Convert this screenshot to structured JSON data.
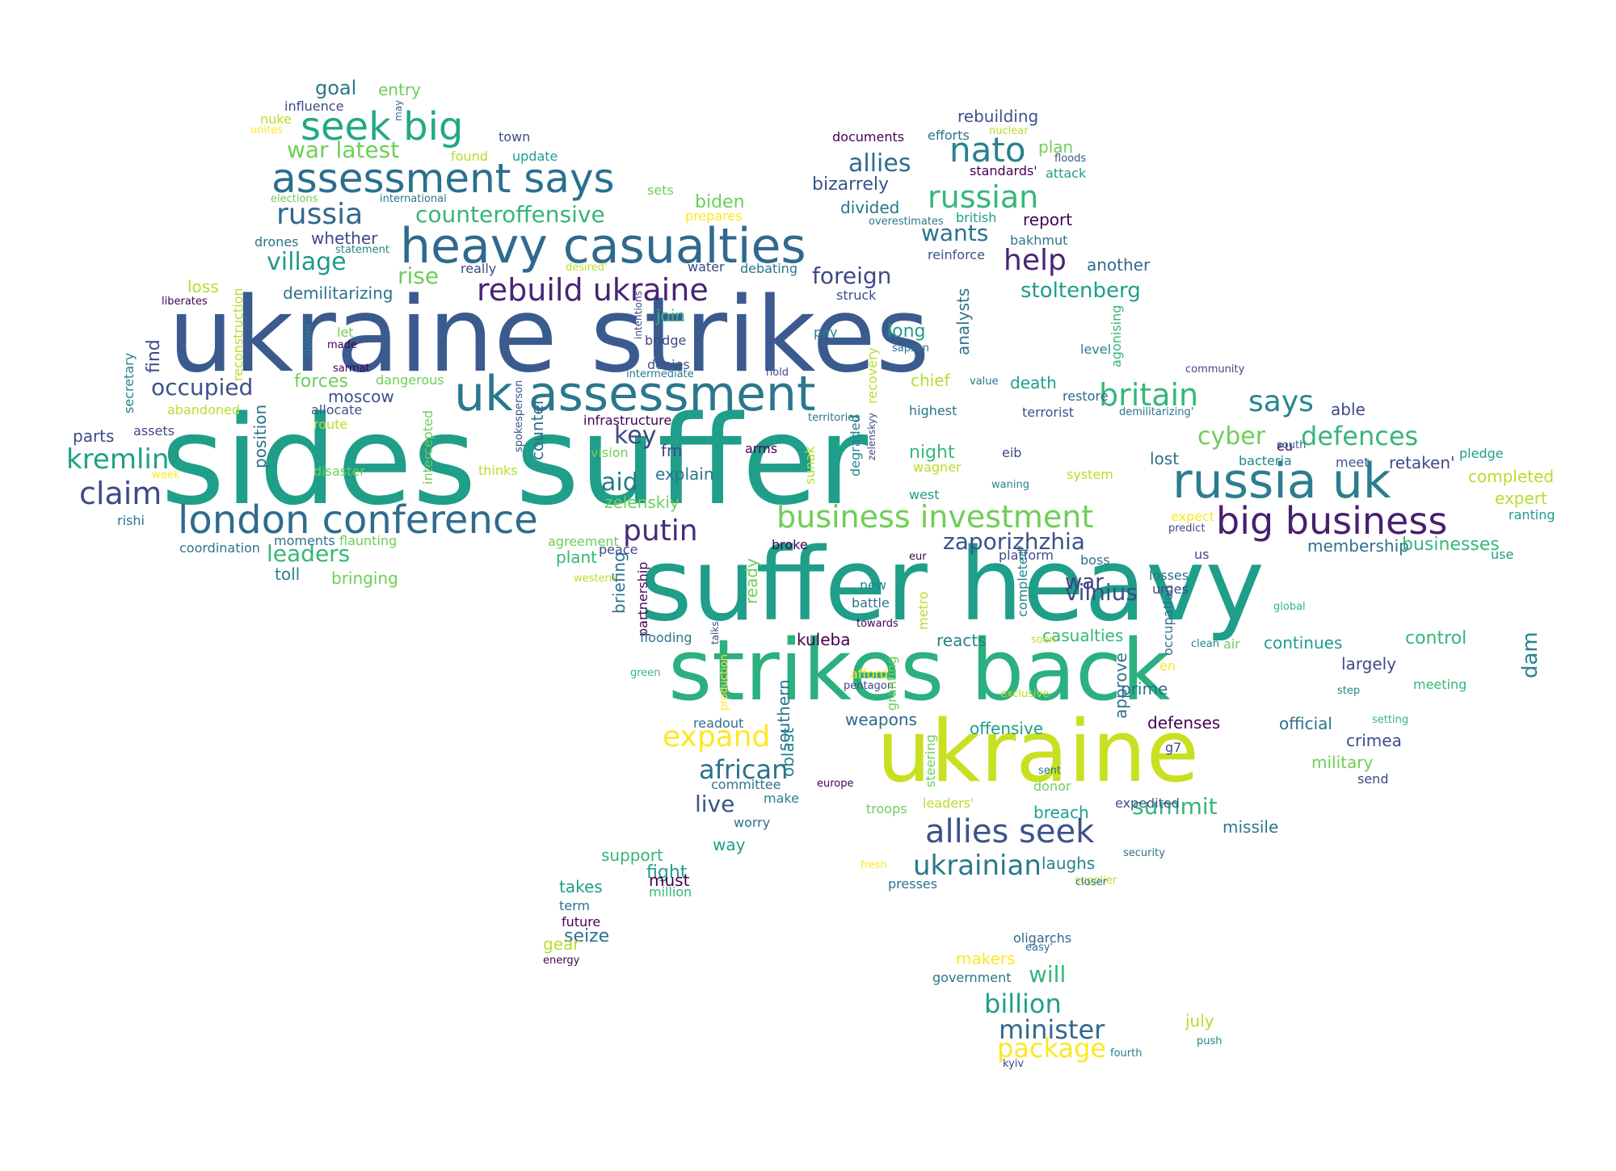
{
  "palette": [
    "#440154",
    "#482878",
    "#3e4989",
    "#31688e",
    "#26828e",
    "#1f9e89",
    "#35b779",
    "#6ece58",
    "#b5de2b",
    "#fde725"
  ],
  "words": [
    {
      "text": "sides suffer",
      "color": "#1f9e89"
    },
    {
      "text": "ukraine strikes",
      "color": "#3b5b8f"
    },
    {
      "text": "suffer heavy",
      "color": "#1f9e89"
    },
    {
      "text": "strikes back",
      "color": "#2bb07f"
    },
    {
      "text": "ukraine",
      "color": "#c8e020"
    },
    {
      "text": "heavy casualties",
      "color": "#2e6a8e"
    },
    {
      "text": "uk assessment",
      "color": "#2a778e"
    },
    {
      "text": "assessment says",
      "color": "#2a6f8e"
    },
    {
      "text": "russia uk",
      "color": "#2c7e8e"
    },
    {
      "text": "london conference",
      "color": "#2f6c8e"
    },
    {
      "text": "big business",
      "color": "#481f70"
    },
    {
      "text": "seek big",
      "color": "#22a884"
    },
    {
      "text": "business investment",
      "color": "#6ece58"
    },
    {
      "text": "allies seek",
      "color": "#3b528b"
    },
    {
      "text": "rebuild ukraine",
      "color": "#482475"
    },
    {
      "text": "nato",
      "color": "#26828e"
    },
    {
      "text": "russian",
      "color": "#35b779"
    },
    {
      "text": "britain",
      "color": "#35b779"
    },
    {
      "text": "says",
      "color": "#25858e"
    },
    {
      "text": "claim",
      "color": "#3e4989"
    },
    {
      "text": "kremlin",
      "color": "#1fa187"
    },
    {
      "text": "putin",
      "color": "#472c7a"
    },
    {
      "text": "russia",
      "color": "#31688e"
    },
    {
      "text": "war latest",
      "color": "#6ece58"
    },
    {
      "text": "village",
      "color": "#1f9a8a"
    },
    {
      "text": "counteroffensive",
      "color": "#35b779"
    },
    {
      "text": "expand",
      "color": "#fde725"
    },
    {
      "text": "african",
      "color": "#2c728e"
    },
    {
      "text": "ukrainian",
      "color": "#2a788e"
    },
    {
      "text": "occupied",
      "color": "#3b528b"
    },
    {
      "text": "help",
      "color": "#482475"
    },
    {
      "text": "allies",
      "color": "#2f6c8e"
    },
    {
      "text": "foreign",
      "color": "#3e4989"
    },
    {
      "text": "defences",
      "color": "#35b779"
    },
    {
      "text": "cyber",
      "color": "#6ece58"
    },
    {
      "text": "zaporizhzhia",
      "color": "#3b528b"
    },
    {
      "text": "stoltenberg",
      "color": "#1f9e89"
    },
    {
      "text": "wants",
      "color": "#2c728e"
    },
    {
      "text": "key",
      "color": "#3e4989"
    },
    {
      "text": "aid",
      "color": "#2a788e"
    },
    {
      "text": "leaders",
      "color": "#35b779"
    },
    {
      "text": "vilnius",
      "color": "#3e4989"
    },
    {
      "text": "war",
      "color": "#433e85"
    },
    {
      "text": "rise",
      "color": "#6ece58"
    },
    {
      "text": "billion",
      "color": "#1f9e89"
    },
    {
      "text": "minister",
      "color": "#31688e"
    },
    {
      "text": "package",
      "color": "#fde725"
    },
    {
      "text": "will",
      "color": "#35b779"
    },
    {
      "text": "summit",
      "color": "#35b779"
    },
    {
      "text": "live",
      "color": "#3b528b"
    },
    {
      "text": "goal",
      "color": "#2a788e"
    },
    {
      "text": "entry",
      "color": "#6ece58"
    },
    {
      "text": "influence",
      "color": "#3e4989"
    },
    {
      "text": "nuke",
      "color": "#b5de2b"
    },
    {
      "text": "unites",
      "color": "#fde725"
    },
    {
      "text": "may",
      "color": "#31688e"
    },
    {
      "text": "town",
      "color": "#3e4989"
    },
    {
      "text": "found",
      "color": "#b5de2b"
    },
    {
      "text": "update",
      "color": "#1f9e89"
    },
    {
      "text": "elections",
      "color": "#6ece58"
    },
    {
      "text": "international",
      "color": "#2a788e"
    },
    {
      "text": "sets",
      "color": "#6ece58"
    },
    {
      "text": "biden",
      "color": "#6ece58"
    },
    {
      "text": "prepares",
      "color": "#fde725"
    },
    {
      "text": "drones",
      "color": "#2c728e"
    },
    {
      "text": "statement",
      "color": "#26828e"
    },
    {
      "text": "whether",
      "color": "#3e4989"
    },
    {
      "text": "demilitarizing",
      "color": "#2c728e"
    },
    {
      "text": "loss",
      "color": "#b5de2b"
    },
    {
      "text": "liberates",
      "color": "#440154"
    },
    {
      "text": "really",
      "color": "#3e4989"
    },
    {
      "text": "desired'",
      "color": "#b5de2b"
    },
    {
      "text": "water",
      "color": "#3e4989"
    },
    {
      "text": "debating",
      "color": "#2a788e"
    },
    {
      "text": "struck",
      "color": "#3e4989"
    },
    {
      "text": "documents",
      "color": "#440154"
    },
    {
      "text": "efforts",
      "color": "#2c728e"
    },
    {
      "text": "nuclear",
      "color": "#b5de2b"
    },
    {
      "text": "rebuilding",
      "color": "#3b528b"
    },
    {
      "text": "plan",
      "color": "#6ece58"
    },
    {
      "text": "floods",
      "color": "#3b528b"
    },
    {
      "text": "attack",
      "color": "#1f9e89"
    },
    {
      "text": "standards'",
      "color": "#440154"
    },
    {
      "text": "bizarrely",
      "color": "#3b528b"
    },
    {
      "text": "divided",
      "color": "#2c728e"
    },
    {
      "text": "overestimates",
      "color": "#2a788e"
    },
    {
      "text": "british",
      "color": "#1f9e89"
    },
    {
      "text": "report",
      "color": "#440154"
    },
    {
      "text": "reinforce",
      "color": "#3b528b"
    },
    {
      "text": "bakhmut",
      "color": "#2a788e"
    },
    {
      "text": "another",
      "color": "#31688e"
    },
    {
      "text": "analysts",
      "color": "#2c728e"
    },
    {
      "text": "long",
      "color": "#1f9e89"
    },
    {
      "text": "sapsan",
      "color": "#2c728e"
    },
    {
      "text": "agonising",
      "color": "#35b779"
    },
    {
      "text": "level",
      "color": "#26828e"
    },
    {
      "text": "community",
      "color": "#3e4989"
    },
    {
      "text": "find",
      "color": "#3e4989"
    },
    {
      "text": "secretary",
      "color": "#26828e"
    },
    {
      "text": "reconstruction",
      "color": "#b5de2b"
    },
    {
      "text": "slower",
      "color": "#26828e"
    },
    {
      "text": "let",
      "color": "#6ece58"
    },
    {
      "text": "made",
      "color": "#440154"
    },
    {
      "text": "sarmat",
      "color": "#440154"
    },
    {
      "text": "dangerous",
      "color": "#6ece58"
    },
    {
      "text": "forces",
      "color": "#6ece58"
    },
    {
      "text": "allocate",
      "color": "#3b528b"
    },
    {
      "text": "moscow",
      "color": "#3b528b"
    },
    {
      "text": "abandoned",
      "color": "#b5de2b"
    },
    {
      "text": "position",
      "color": "#2c728e"
    },
    {
      "text": "route",
      "color": "#b5de2b"
    },
    {
      "text": "parts",
      "color": "#3e4989"
    },
    {
      "text": "assets",
      "color": "#3e4989"
    },
    {
      "text": "intercepted",
      "color": "#6ece58"
    },
    {
      "text": "counter",
      "color": "#2c728e"
    },
    {
      "text": "spokesperson",
      "color": "#3b528b"
    },
    {
      "text": "infrastructure",
      "color": "#440154"
    },
    {
      "text": "intentions",
      "color": "#3e4989"
    },
    {
      "text": "join",
      "color": "#35b779"
    },
    {
      "text": "bridge",
      "color": "#3e4989"
    },
    {
      "text": "pay",
      "color": "#26828e"
    },
    {
      "text": "denies",
      "color": "#3b528b"
    },
    {
      "text": "intermediate",
      "color": "#2a788e"
    },
    {
      "text": "hold",
      "color": "#3e4989"
    },
    {
      "text": "recovery",
      "color": "#b5de2b"
    },
    {
      "text": "chief",
      "color": "#b5de2b"
    },
    {
      "text": "value",
      "color": "#2c728e"
    },
    {
      "text": "death",
      "color": "#1f9e89"
    },
    {
      "text": "restore",
      "color": "#31688e"
    },
    {
      "text": "highest",
      "color": "#2c728e"
    },
    {
      "text": "terrorist",
      "color": "#3b528b"
    },
    {
      "text": "demilitarizing'",
      "color": "#2c728e"
    },
    {
      "text": "able",
      "color": "#3e4989"
    },
    {
      "text": "territories",
      "color": "#2c728e"
    },
    {
      "text": "sunak",
      "color": "#b5de2b"
    },
    {
      "text": "degraded",
      "color": "#26828e"
    },
    {
      "text": "zelenskyy",
      "color": "#3e4989"
    },
    {
      "text": "vision",
      "color": "#6ece58"
    },
    {
      "text": "fm",
      "color": "#3e4989"
    },
    {
      "text": "arms",
      "color": "#440154"
    },
    {
      "text": "night",
      "color": "#35b779"
    },
    {
      "text": "wagner",
      "color": "#b5de2b"
    },
    {
      "text": "eib",
      "color": "#3e4989"
    },
    {
      "text": "lost",
      "color": "#2c728e"
    },
    {
      "text": "bacteria",
      "color": "#26828e"
    },
    {
      "text": "eu",
      "color": "#440154"
    },
    {
      "text": "south",
      "color": "#31688e"
    },
    {
      "text": "meet",
      "color": "#3b528b"
    },
    {
      "text": "retaken'",
      "color": "#3e4989"
    },
    {
      "text": "pledge",
      "color": "#1f9e89"
    },
    {
      "text": "completed",
      "color": "#b5de2b"
    },
    {
      "text": "expert",
      "color": "#b5de2b"
    },
    {
      "text": "ranting",
      "color": "#1f9e89"
    },
    {
      "text": "system",
      "color": "#b5de2b"
    },
    {
      "text": "waning",
      "color": "#26828e"
    },
    {
      "text": "west",
      "color": "#1f9e89"
    },
    {
      "text": "disaster",
      "color": "#6ece58"
    },
    {
      "text": "thinks",
      "color": "#b5de2b"
    },
    {
      "text": "explain",
      "color": "#2c728e"
    },
    {
      "text": "zelenskiy",
      "color": "#6ece58"
    },
    {
      "text": "week",
      "color": "#fde725"
    },
    {
      "text": "rishi",
      "color": "#2c728e"
    },
    {
      "text": "moments",
      "color": "#2c728e"
    },
    {
      "text": "flaunting",
      "color": "#6ece58"
    },
    {
      "text": "coordination",
      "color": "#2c728e"
    },
    {
      "text": "agreement",
      "color": "#6ece58"
    },
    {
      "text": "peace",
      "color": "#3e4989"
    },
    {
      "text": "plant",
      "color": "#35b779"
    },
    {
      "text": "broke",
      "color": "#440154"
    },
    {
      "text": "expect",
      "color": "#fde725"
    },
    {
      "text": "predict",
      "color": "#3e4989"
    },
    {
      "text": "membership",
      "color": "#2c728e"
    },
    {
      "text": "businesses",
      "color": "#35b779"
    },
    {
      "text": "us",
      "color": "#3e4989"
    },
    {
      "text": "use",
      "color": "#1f9e89"
    },
    {
      "text": "toll",
      "color": "#26828e"
    },
    {
      "text": "bringing",
      "color": "#6ece58"
    },
    {
      "text": "ready",
      "color": "#6ece58"
    },
    {
      "text": "briefing",
      "color": "#2c728e"
    },
    {
      "text": "partnership",
      "color": "#440154"
    },
    {
      "text": "talks",
      "color": "#3e4989"
    },
    {
      "text": "western",
      "color": "#b5de2b"
    },
    {
      "text": "eur",
      "color": "#440154"
    },
    {
      "text": "platform",
      "color": "#3e4989"
    },
    {
      "text": "completed'",
      "color": "#26828e"
    },
    {
      "text": "boss",
      "color": "#2c728e"
    },
    {
      "text": "new",
      "color": "#26828e"
    },
    {
      "text": "battle",
      "color": "#2c728e"
    },
    {
      "text": "towards",
      "color": "#440154"
    },
    {
      "text": "metro",
      "color": "#b5de2b"
    },
    {
      "text": "occupation",
      "color": "#2c728e"
    },
    {
      "text": "losses",
      "color": "#2c728e"
    },
    {
      "text": "urges",
      "color": "#3e4989"
    },
    {
      "text": "casualties",
      "color": "#35b779"
    },
    {
      "text": "global",
      "color": "#35b779"
    },
    {
      "text": "flooding",
      "color": "#2c728e"
    },
    {
      "text": "kuleba",
      "color": "#440154"
    },
    {
      "text": "reacts",
      "color": "#26828e"
    },
    {
      "text": "soon",
      "color": "#b5de2b"
    },
    {
      "text": "clean",
      "color": "#26828e"
    },
    {
      "text": "air",
      "color": "#6ece58"
    },
    {
      "text": "continues",
      "color": "#1f9e89"
    },
    {
      "text": "control",
      "color": "#35b779"
    },
    {
      "text": "dam",
      "color": "#26828e"
    },
    {
      "text": "green",
      "color": "#35b779"
    },
    {
      "text": "production",
      "color": "#fde725"
    },
    {
      "text": "southern",
      "color": "#2c728e"
    },
    {
      "text": "afford",
      "color": "#fde725"
    },
    {
      "text": "pentagon",
      "color": "#3e4989"
    },
    {
      "text": "granting",
      "color": "#6ece58"
    },
    {
      "text": "exclusive",
      "color": "#b5de2b"
    },
    {
      "text": "en",
      "color": "#fde725"
    },
    {
      "text": "approve",
      "color": "#2c728e"
    },
    {
      "text": "prime",
      "color": "#2c728e"
    },
    {
      "text": "largely",
      "color": "#3e4989"
    },
    {
      "text": "step",
      "color": "#26828e"
    },
    {
      "text": "meeting",
      "color": "#35b779"
    },
    {
      "text": "readout",
      "color": "#2c728e"
    },
    {
      "text": "weapons",
      "color": "#31688e"
    },
    {
      "text": "oblast",
      "color": "#26828e"
    },
    {
      "text": "offensive",
      "color": "#1f9e89"
    },
    {
      "text": "steering",
      "color": "#6ece58"
    },
    {
      "text": "defenses",
      "color": "#440154"
    },
    {
      "text": "official",
      "color": "#2c728e"
    },
    {
      "text": "setting",
      "color": "#35b779"
    },
    {
      "text": "crimea",
      "color": "#3e4989"
    },
    {
      "text": "g7",
      "color": "#3e4989"
    },
    {
      "text": "military",
      "color": "#6ece58"
    },
    {
      "text": "sent",
      "color": "#2c728e"
    },
    {
      "text": "donor",
      "color": "#6ece58"
    },
    {
      "text": "send",
      "color": "#3e4989"
    },
    {
      "text": "committee",
      "color": "#2c728e"
    },
    {
      "text": "europe",
      "color": "#440154"
    },
    {
      "text": "make",
      "color": "#26828e"
    },
    {
      "text": "leaders'",
      "color": "#b5de2b"
    },
    {
      "text": "troops",
      "color": "#6ece58"
    },
    {
      "text": "breach",
      "color": "#1f9e89"
    },
    {
      "text": "expedited",
      "color": "#3b528b"
    },
    {
      "text": "worry",
      "color": "#2c728e"
    },
    {
      "text": "missile",
      "color": "#2a788e"
    },
    {
      "text": "way",
      "color": "#1f9e89"
    },
    {
      "text": "support",
      "color": "#35b779"
    },
    {
      "text": "fresh",
      "color": "#fde725"
    },
    {
      "text": "presses",
      "color": "#2c728e"
    },
    {
      "text": "laughs",
      "color": "#26828e"
    },
    {
      "text": "security",
      "color": "#2c728e"
    },
    {
      "text": "supplier",
      "color": "#b5de2b"
    },
    {
      "text": "closer",
      "color": "#2c728e"
    },
    {
      "text": "fight",
      "color": "#1f9e89"
    },
    {
      "text": "must",
      "color": "#440154"
    },
    {
      "text": "million",
      "color": "#35b779"
    },
    {
      "text": "takes",
      "color": "#1f9e89"
    },
    {
      "text": "term",
      "color": "#2c728e"
    },
    {
      "text": "future",
      "color": "#440154"
    },
    {
      "text": "seize",
      "color": "#2c728e"
    },
    {
      "text": "gear",
      "color": "#b5de2b"
    },
    {
      "text": "energy",
      "color": "#440154"
    },
    {
      "text": "oligarchs",
      "color": "#31688e"
    },
    {
      "text": "easy'",
      "color": "#31688e"
    },
    {
      "text": "makers",
      "color": "#fde725"
    },
    {
      "text": "government",
      "color": "#2c728e"
    },
    {
      "text": "july",
      "color": "#b5de2b"
    },
    {
      "text": "push",
      "color": "#26828e"
    },
    {
      "text": "kyiv",
      "color": "#3e4989"
    },
    {
      "text": "fourth",
      "color": "#26828e"
    }
  ]
}
